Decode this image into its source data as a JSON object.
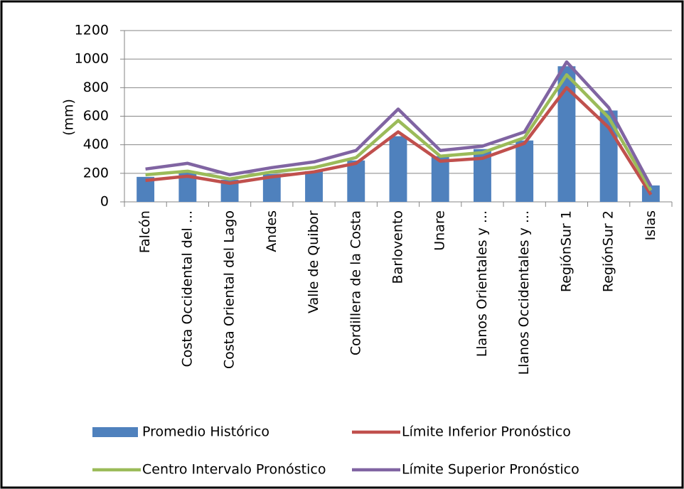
{
  "chart_data": {
    "type": "combo",
    "y_label": "(mm)",
    "categories": [
      "Falcón",
      "Costa Occidental del ...",
      "Costa Oriental del Lago",
      "Andes",
      "Valle de Quibor",
      "Cordillera de la Costa",
      "Barlovento",
      "Unare",
      "Llanos Orientales y ...",
      "Llanos Occidentales y ...",
      "RegiónSur 1",
      "RegiónSur 2",
      "Islas"
    ],
    "series": [
      {
        "name": "Promedio Histórico",
        "type": "bar",
        "color": "#4f81bd",
        "values": [
          175,
          210,
          155,
          195,
          215,
          290,
          460,
          320,
          370,
          430,
          950,
          640,
          115
        ]
      },
      {
        "name": "Límite Inferior Pronóstico",
        "type": "line",
        "color": "#c0504d",
        "values": [
          150,
          180,
          130,
          175,
          210,
          270,
          490,
          285,
          305,
          410,
          800,
          520,
          50
        ]
      },
      {
        "name": "Centro Intervalo  Pronóstico",
        "type": "line",
        "color": "#9bbb59",
        "values": [
          190,
          215,
          160,
          210,
          240,
          310,
          570,
          320,
          345,
          450,
          890,
          590,
          80
        ]
      },
      {
        "name": "Límite Superior Pronóstico",
        "type": "line",
        "color": "#8064a2",
        "values": [
          230,
          270,
          190,
          240,
          280,
          360,
          650,
          360,
          390,
          490,
          980,
          660,
          110
        ]
      }
    ],
    "ylim": [
      0,
      1200
    ],
    "yticks": [
      0,
      200,
      400,
      600,
      800,
      1000,
      1200
    ],
    "grid": true,
    "legend": "bottom"
  }
}
